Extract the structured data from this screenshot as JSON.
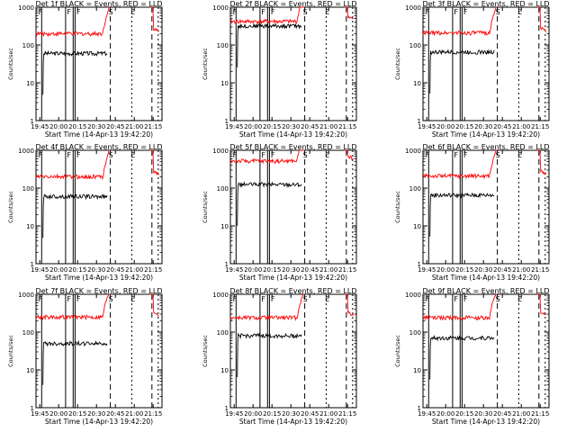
{
  "figure": {
    "ylabel": "Counts/sec",
    "xlabel": "Start Time (14-Apr-13 19:42:20)",
    "x_ticks": [
      "19:45",
      "20:00",
      "20:15",
      "20:30",
      "20:45",
      "21:00",
      "21:15"
    ],
    "y_ticks": [
      "1",
      "10",
      "100",
      "1000"
    ],
    "series_colors": {
      "events": "#000000",
      "lld": "#ff0000"
    },
    "marker_labels": {
      "F": "F",
      "S": "S",
      "E": "E"
    }
  },
  "chart_data": [
    {
      "type": "line",
      "title": "Det 1f BLACK = Events, RED = LLD",
      "y_scale": "log",
      "ylim": [
        1,
        1000
      ],
      "xlim": [
        "19:42",
        "21:22"
      ],
      "series": [
        {
          "name": "Events",
          "color": "#000000",
          "level": 60
        },
        {
          "name": "LLD",
          "color": "#ff0000",
          "level": 200
        }
      ]
    },
    {
      "type": "line",
      "title": "Det 2f BLACK = Events, RED = LLD",
      "y_scale": "log",
      "ylim": [
        1,
        1000
      ],
      "xlim": [
        "19:42",
        "21:22"
      ],
      "series": [
        {
          "name": "Events",
          "color": "#000000",
          "level": 320
        },
        {
          "name": "LLD",
          "color": "#ff0000",
          "level": 420
        }
      ]
    },
    {
      "type": "line",
      "title": "Det 3f BLACK = Events, RED = LLD",
      "y_scale": "log",
      "ylim": [
        1,
        1000
      ],
      "xlim": [
        "19:42",
        "21:22"
      ],
      "series": [
        {
          "name": "Events",
          "color": "#000000",
          "level": 65
        },
        {
          "name": "LLD",
          "color": "#ff0000",
          "level": 210
        }
      ]
    },
    {
      "type": "line",
      "title": "Det 4f BLACK = Events, RED = LLD",
      "y_scale": "log",
      "ylim": [
        1,
        1000
      ],
      "xlim": [
        "19:42",
        "21:22"
      ],
      "series": [
        {
          "name": "Events",
          "color": "#000000",
          "level": 60
        },
        {
          "name": "LLD",
          "color": "#ff0000",
          "level": 200
        }
      ]
    },
    {
      "type": "line",
      "title": "Det 5f BLACK = Events, RED = LLD",
      "y_scale": "log",
      "ylim": [
        1,
        1000
      ],
      "xlim": [
        "19:42",
        "21:22"
      ],
      "series": [
        {
          "name": "Events",
          "color": "#000000",
          "level": 125
        },
        {
          "name": "LLD",
          "color": "#ff0000",
          "level": 520
        }
      ]
    },
    {
      "type": "line",
      "title": "Det 6f BLACK = Events, RED = LLD",
      "y_scale": "log",
      "ylim": [
        1,
        1000
      ],
      "xlim": [
        "19:42",
        "21:22"
      ],
      "series": [
        {
          "name": "Events",
          "color": "#000000",
          "level": 65
        },
        {
          "name": "LLD",
          "color": "#ff0000",
          "level": 210
        }
      ]
    },
    {
      "type": "line",
      "title": "Det 7f BLACK = Events, RED = LLD",
      "y_scale": "log",
      "ylim": [
        1,
        1000
      ],
      "xlim": [
        "19:42",
        "21:22"
      ],
      "series": [
        {
          "name": "Events",
          "color": "#000000",
          "level": 50
        },
        {
          "name": "LLD",
          "color": "#ff0000",
          "level": 250
        }
      ]
    },
    {
      "type": "line",
      "title": "Det 8f BLACK = Events, RED = LLD",
      "y_scale": "log",
      "ylim": [
        1,
        1000
      ],
      "xlim": [
        "19:42",
        "21:22"
      ],
      "series": [
        {
          "name": "Events",
          "color": "#000000",
          "level": 80
        },
        {
          "name": "LLD",
          "color": "#ff0000",
          "level": 240
        }
      ]
    },
    {
      "type": "line",
      "title": "Det 9f BLACK = Events, RED = LLD",
      "y_scale": "log",
      "ylim": [
        1,
        1000
      ],
      "xlim": [
        "19:42",
        "21:22"
      ],
      "series": [
        {
          "name": "Events",
          "color": "#000000",
          "level": 70
        },
        {
          "name": "LLD",
          "color": "#ff0000",
          "level": 240
        }
      ]
    }
  ]
}
